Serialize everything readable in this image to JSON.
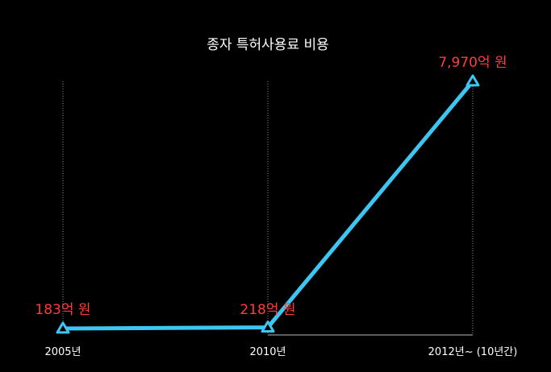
{
  "chart_data": {
    "type": "line",
    "title": "종자 특허사용료 비용",
    "categories": [
      "2005년",
      "2010년",
      "2012년~ (10년간)"
    ],
    "values": [
      183,
      218,
      7970
    ],
    "data_labels": [
      "183억 원",
      "218억 원",
      "7,970억 원"
    ],
    "ylim": [
      183,
      7970
    ],
    "grid": "dotted vertical lines at each category",
    "marker": "triangle",
    "colors": {
      "background": "#000000",
      "line": "#3ec6f2",
      "data_label": "#ff3b3b",
      "text": "#ffffff",
      "grid": "#888888"
    }
  }
}
